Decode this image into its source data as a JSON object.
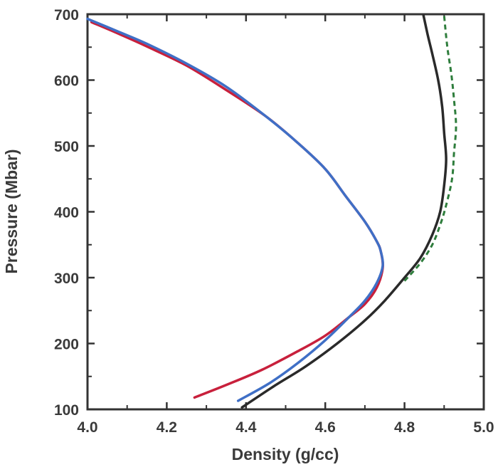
{
  "chart_data": {
    "type": "line",
    "title": "",
    "xlabel": "Density (g/cc)",
    "ylabel": "Pressure (Mbar)",
    "xlim": [
      4.0,
      5.0
    ],
    "ylim": [
      100,
      700
    ],
    "xticks": [
      "4.0",
      "4.2",
      "4.4",
      "4.6",
      "4.8",
      "5.0"
    ],
    "yticks": [
      "100",
      "200",
      "300",
      "400",
      "500",
      "600",
      "700"
    ],
    "grid": false,
    "series": [
      {
        "color": "#c8203c",
        "dash": "solid",
        "points": [
          [
            4.27,
            118
          ],
          [
            4.35,
            137
          ],
          [
            4.44,
            160
          ],
          [
            4.53,
            188
          ],
          [
            4.6,
            212
          ],
          [
            4.66,
            240
          ],
          [
            4.7,
            260
          ],
          [
            4.73,
            285
          ],
          [
            4.745,
            315
          ],
          [
            4.74,
            340
          ],
          [
            4.73,
            355
          ],
          [
            4.7,
            385
          ],
          [
            4.65,
            425
          ],
          [
            4.6,
            465
          ],
          [
            4.53,
            505
          ],
          [
            4.45,
            545
          ],
          [
            4.35,
            585
          ],
          [
            4.25,
            622
          ],
          [
            4.15,
            651
          ],
          [
            4.08,
            670
          ],
          [
            4.01,
            688
          ]
        ]
      },
      {
        "color": "#3f6fc6",
        "dash": "solid",
        "points": [
          [
            4.38,
            113
          ],
          [
            4.46,
            140
          ],
          [
            4.53,
            170
          ],
          [
            4.6,
            205
          ],
          [
            4.66,
            240
          ],
          [
            4.7,
            265
          ],
          [
            4.73,
            292
          ],
          [
            4.745,
            318
          ],
          [
            4.74,
            340
          ],
          [
            4.73,
            355
          ],
          [
            4.7,
            385
          ],
          [
            4.65,
            425
          ],
          [
            4.6,
            465
          ],
          [
            4.53,
            505
          ],
          [
            4.45,
            545
          ],
          [
            4.35,
            590
          ],
          [
            4.25,
            625
          ],
          [
            4.15,
            655
          ],
          [
            4.08,
            673
          ],
          [
            4.0,
            693
          ]
        ]
      },
      {
        "color": "#2a2a2a",
        "dash": "solid",
        "points": [
          [
            4.39,
            103
          ],
          [
            4.47,
            135
          ],
          [
            4.55,
            165
          ],
          [
            4.63,
            200
          ],
          [
            4.7,
            235
          ],
          [
            4.75,
            265
          ],
          [
            4.8,
            300
          ],
          [
            4.84,
            330
          ],
          [
            4.87,
            365
          ],
          [
            4.89,
            400
          ],
          [
            4.9,
            440
          ],
          [
            4.905,
            480
          ],
          [
            4.9,
            520
          ],
          [
            4.895,
            560
          ],
          [
            4.885,
            600
          ],
          [
            4.87,
            640
          ],
          [
            4.858,
            670
          ],
          [
            4.848,
            698
          ]
        ]
      },
      {
        "color": "#2e7d3c",
        "dash": "dashed",
        "points": [
          [
            4.8,
            295
          ],
          [
            4.84,
            322
          ],
          [
            4.87,
            350
          ],
          [
            4.89,
            380
          ],
          [
            4.905,
            410
          ],
          [
            4.92,
            450
          ],
          [
            4.925,
            490
          ],
          [
            4.93,
            530
          ],
          [
            4.925,
            570
          ],
          [
            4.918,
            610
          ],
          [
            4.908,
            650
          ],
          [
            4.9,
            698
          ]
        ]
      }
    ]
  }
}
